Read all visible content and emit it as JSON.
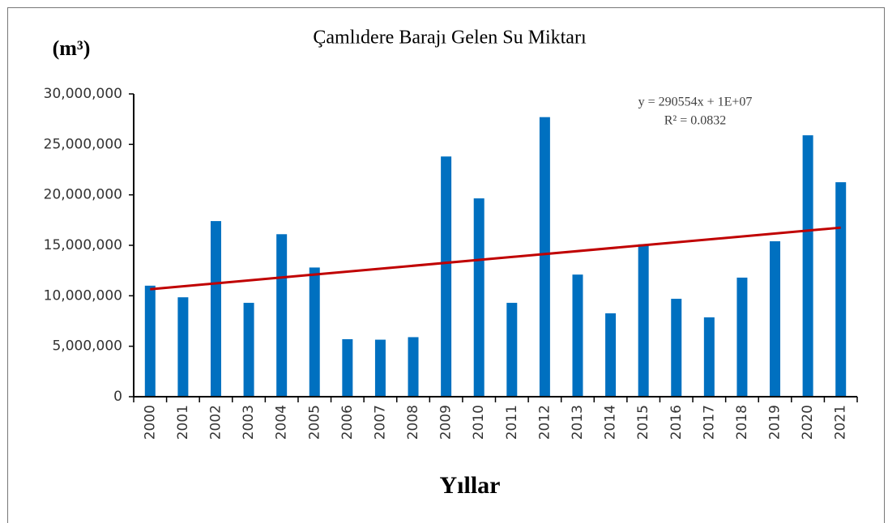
{
  "chart_data": {
    "type": "bar",
    "title": "Çamlıdere Barajı Gelen Su Miktarı",
    "y_label": "(m³)",
    "x_label": "Yıllar",
    "categories": [
      "2000",
      "2001",
      "2002",
      "2003",
      "2004",
      "2005",
      "2006",
      "2007",
      "2008",
      "2009",
      "2010",
      "2011",
      "2012",
      "2013",
      "2014",
      "2015",
      "2016",
      "2017",
      "2018",
      "2019",
      "2020",
      "2021"
    ],
    "values": [
      11000000,
      9850000,
      17400000,
      9300000,
      16100000,
      12800000,
      5700000,
      5650000,
      5900000,
      23800000,
      19650000,
      9300000,
      27700000,
      12100000,
      8260000,
      15100000,
      9700000,
      7860000,
      11800000,
      15400000,
      25900000,
      21250000
    ],
    "color": "#0070c0",
    "ylim": [
      0,
      30000000
    ],
    "yticks": [
      0,
      {
        "value": 5000000,
        "label": "5,000,000"
      },
      {
        "value": 10000000,
        "label": "10,000,000"
      },
      {
        "value": 15000000,
        "label": "15,000,000"
      },
      {
        "value": 20000000,
        "label": "20,000,000"
      },
      {
        "value": 25000000,
        "label": "25,000,000"
      },
      {
        "value": 30000000,
        "label": "30,000,000"
      }
    ],
    "grid": false,
    "trendline": {
      "start": 10650000,
      "end": 16750000,
      "color": "#c00000",
      "equation": "y = 290554x + 1E+07",
      "r_squared": "R² = 0.0832"
    }
  }
}
